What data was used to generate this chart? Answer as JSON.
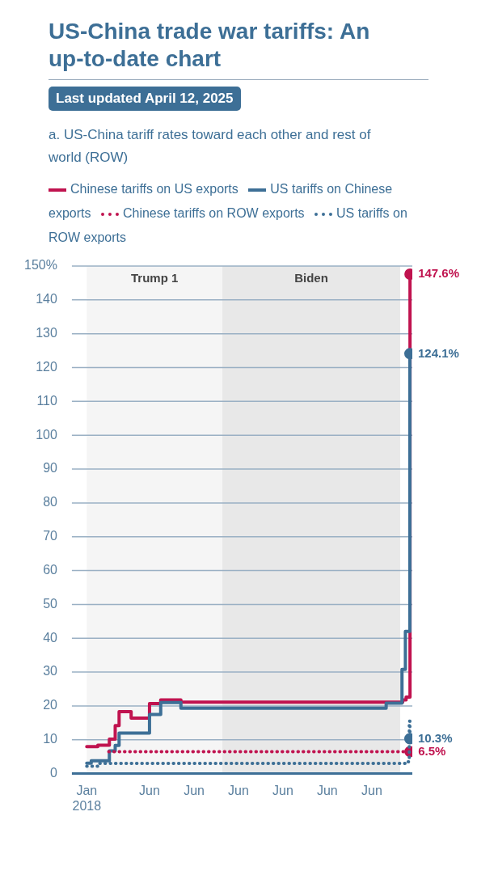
{
  "chart_data": {
    "type": "step",
    "title": "US-China trade war tariffs: An up-to-date chart",
    "subtitle": "a. US-China tariff rates toward each other and rest of world (ROW)",
    "annotations": [
      "Last updated April 12, 2025"
    ],
    "legend": "top",
    "grid": "y",
    "xlim": [
      "2017-09-01",
      "2025-04-30"
    ],
    "xticks": [
      {
        "value": "2018-01-01",
        "label": "Jan 2018"
      },
      {
        "value": "2019-06-01",
        "label": "Jun"
      },
      {
        "value": "2020-06-01",
        "label": "Jun"
      },
      {
        "value": "2021-06-01",
        "label": "Jun"
      },
      {
        "value": "2022-06-01",
        "label": "Jun"
      },
      {
        "value": "2023-06-01",
        "label": "Jun"
      },
      {
        "value": "2024-06-01",
        "label": "Jun"
      }
    ],
    "ylim": [
      0,
      150
    ],
    "yticks": [
      0,
      10,
      20,
      30,
      40,
      50,
      60,
      70,
      80,
      90,
      100,
      110,
      120,
      130,
      140,
      {
        "value": 150,
        "label": "150%"
      }
    ],
    "bands": [
      {
        "axis": "x",
        "from": "2018-01-01",
        "to": "2021-01-20",
        "label": "Trump 1",
        "color": "#f5f5f5"
      },
      {
        "axis": "x",
        "from": "2021-01-20",
        "to": "2025-01-20",
        "label": "Biden",
        "color": "#e8e8e8"
      }
    ],
    "series": [
      {
        "name": "Chinese tariffs on US exports",
        "color": "#c0134f",
        "line_style": "solid",
        "x": [
          "2018-01-01",
          "2018-04-02",
          "2018-07-06",
          "2018-08-23",
          "2018-09-24",
          "2019-01-01",
          "2019-06-01",
          "2019-09-01",
          "2020-02-14",
          "2025-02-10",
          "2025-03-10",
          "2025-04-11"
        ],
        "values": [
          8.0,
          8.4,
          10.2,
          14.2,
          18.3,
          16.4,
          20.7,
          21.8,
          21.1,
          21.8,
          22.6,
          147.6
        ],
        "value_labels": [
          null,
          null,
          null,
          null,
          null,
          null,
          null,
          null,
          null,
          null,
          null,
          "147.6%"
        ]
      },
      {
        "name": "US tariffs on Chinese exports",
        "color": "#3d6f96",
        "line_style": "solid",
        "x": [
          "2018-01-01",
          "2018-02-07",
          "2018-07-06",
          "2018-08-23",
          "2018-09-24",
          "2019-06-01",
          "2019-09-01",
          "2020-02-14",
          "2024-09-27",
          "2025-02-04",
          "2025-03-04",
          "2025-04-10"
        ],
        "values": [
          3.1,
          3.8,
          6.7,
          8.3,
          12.0,
          17.5,
          21.0,
          19.3,
          20.8,
          30.8,
          42.0,
          124.1
        ],
        "value_labels": [
          null,
          null,
          null,
          null,
          null,
          null,
          null,
          null,
          null,
          null,
          null,
          "124.1%"
        ]
      },
      {
        "name": "Chinese tariffs on ROW exports",
        "color": "#c0134f",
        "line_style": "dotted",
        "x": [
          "2018-07-01",
          "2025-04-11"
        ],
        "values": [
          6.5,
          6.5
        ],
        "value_labels": [
          null,
          "6.5%"
        ]
      },
      {
        "name": "US tariffs on ROW exports",
        "color": "#3d6f96",
        "line_style": "dotted",
        "x": [
          "2018-01-01",
          "2018-04-01",
          "2025-03-12",
          "2025-04-05",
          "2025-04-10"
        ],
        "values": [
          2.2,
          3.0,
          3.5,
          15.5,
          10.3
        ],
        "value_labels": [
          null,
          null,
          null,
          null,
          "10.3%"
        ]
      }
    ]
  }
}
